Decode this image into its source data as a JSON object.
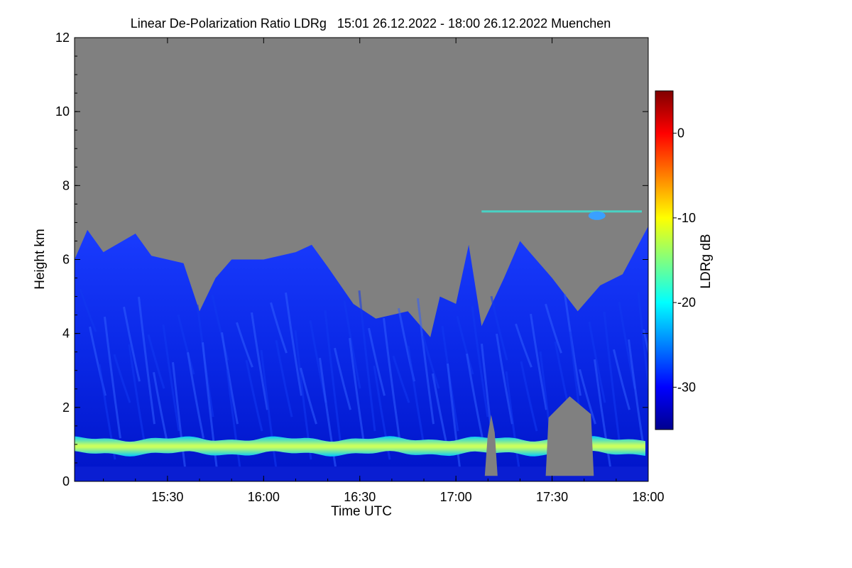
{
  "chart_data": {
    "type": "heatmap",
    "title": "Linear De-Polarization Ratio LDRg   15:01 26.12.2022 - 18:00 26.12.2022 Muenchen",
    "xlabel": "Time UTC",
    "ylabel": "Height km",
    "x_range": [
      "15:01",
      "18:00"
    ],
    "y_range": [
      0,
      12
    ],
    "x_ticks": [
      "15:30",
      "16:00",
      "16:30",
      "17:00",
      "17:30",
      "18:00"
    ],
    "y_ticks": [
      "0",
      "2",
      "4",
      "6",
      "8",
      "10",
      "12"
    ],
    "colorbar": {
      "label": "LDRg dB",
      "range": [
        -35,
        5
      ],
      "ticks": [
        "0",
        "-10",
        "-20",
        "-30"
      ],
      "colormap": [
        "#00008f",
        "#0000ff",
        "#0080ff",
        "#00ffff",
        "#80ff80",
        "#ffff00",
        "#ff8000",
        "#ff0000",
        "#800000"
      ]
    },
    "no_signal_color": "#808080",
    "cloud_top_km": [
      {
        "time": "15:01",
        "top": 6.0
      },
      {
        "time": "15:05",
        "top": 6.8
      },
      {
        "time": "15:10",
        "top": 6.2
      },
      {
        "time": "15:20",
        "top": 6.7
      },
      {
        "time": "15:25",
        "top": 6.1
      },
      {
        "time": "15:35",
        "top": 5.9
      },
      {
        "time": "15:40",
        "top": 4.6
      },
      {
        "time": "15:45",
        "top": 5.5
      },
      {
        "time": "15:50",
        "top": 6.0
      },
      {
        "time": "16:00",
        "top": 6.0
      },
      {
        "time": "16:10",
        "top": 6.2
      },
      {
        "time": "16:15",
        "top": 6.4
      },
      {
        "time": "16:20",
        "top": 5.8
      },
      {
        "time": "16:28",
        "top": 4.8
      },
      {
        "time": "16:35",
        "top": 4.4
      },
      {
        "time": "16:45",
        "top": 4.6
      },
      {
        "time": "16:52",
        "top": 3.9
      },
      {
        "time": "16:55",
        "top": 5.0
      },
      {
        "time": "17:00",
        "top": 4.8
      },
      {
        "time": "17:04",
        "top": 6.4
      },
      {
        "time": "17:08",
        "top": 4.2
      },
      {
        "time": "17:15",
        "top": 5.5
      },
      {
        "time": "17:20",
        "top": 6.5
      },
      {
        "time": "17:30",
        "top": 5.5
      },
      {
        "time": "17:38",
        "top": 4.6
      },
      {
        "time": "17:45",
        "top": 5.3
      },
      {
        "time": "17:52",
        "top": 5.6
      },
      {
        "time": "18:00",
        "top": 6.9
      }
    ],
    "melting_layer_km": 0.95,
    "cirrus_layer": {
      "time_start": "17:08",
      "time_end": "17:58",
      "height_km": 7.3
    },
    "clear_gaps": [
      {
        "time_start": "17:09",
        "time_end": "17:13",
        "top_km": 1.8
      },
      {
        "time_start": "17:28",
        "time_end": "17:43",
        "top_km": 2.3
      }
    ]
  }
}
